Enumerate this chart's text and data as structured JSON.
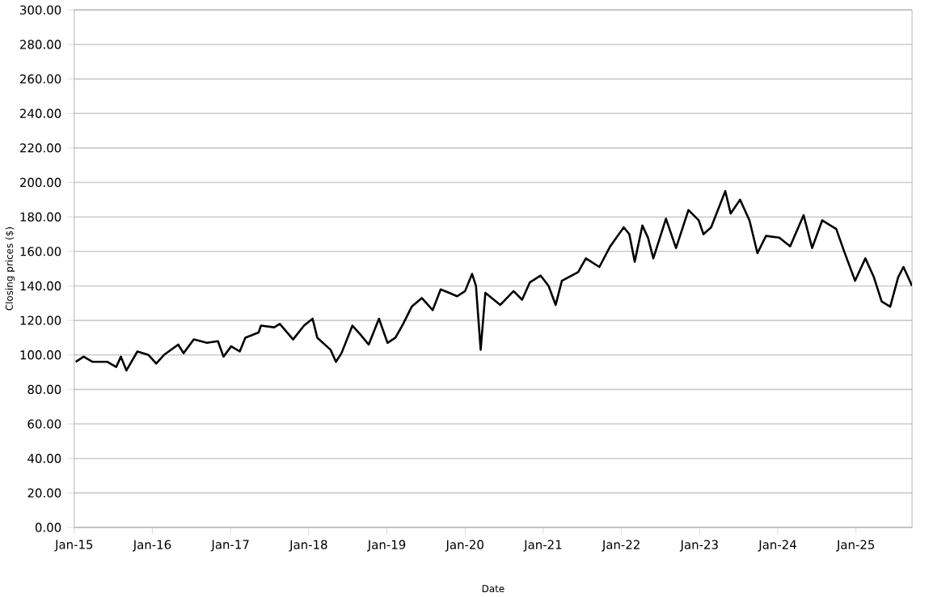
{
  "chart_data": {
    "type": "line",
    "xlabel": "Date",
    "ylabel": "Closing prices ($)",
    "grid": "y",
    "line_style": "solid",
    "marker": "none",
    "xlim": [
      "2015-01-01",
      "2025-09-20"
    ],
    "xticks": [
      {
        "value": "2015-01-01",
        "label": "Jan-15"
      },
      {
        "value": "2016-01-01",
        "label": "Jan-16"
      },
      {
        "value": "2017-01-01",
        "label": "Jan-17"
      },
      {
        "value": "2018-01-01",
        "label": "Jan-18"
      },
      {
        "value": "2019-01-01",
        "label": "Jan-19"
      },
      {
        "value": "2020-01-01",
        "label": "Jan-20"
      },
      {
        "value": "2021-01-01",
        "label": "Jan-21"
      },
      {
        "value": "2022-01-01",
        "label": "Jan-22"
      },
      {
        "value": "2023-01-01",
        "label": "Jan-23"
      },
      {
        "value": "2024-01-01",
        "label": "Jan-24"
      },
      {
        "value": "2025-01-01",
        "label": "Jan-25"
      }
    ],
    "ylim": [
      0,
      300
    ],
    "yticks": [
      {
        "value": 0,
        "label": "0.00"
      },
      {
        "value": 20,
        "label": "20.00"
      },
      {
        "value": 40,
        "label": "40.00"
      },
      {
        "value": 60,
        "label": "60.00"
      },
      {
        "value": 80,
        "label": "80.00"
      },
      {
        "value": 100,
        "label": "100.00"
      },
      {
        "value": 120,
        "label": "120.00"
      },
      {
        "value": 140,
        "label": "140.00"
      },
      {
        "value": 160,
        "label": "160.00"
      },
      {
        "value": 180,
        "label": "180.00"
      },
      {
        "value": 200,
        "label": "200.00"
      },
      {
        "value": 220,
        "label": "220.00"
      },
      {
        "value": 240,
        "label": "240.00"
      },
      {
        "value": 260,
        "label": "260.00"
      },
      {
        "value": 280,
        "label": "280.00"
      },
      {
        "value": 300,
        "label": "300.00"
      }
    ],
    "x": [
      "2015-01-08",
      "2015-02-14",
      "2015-03-28",
      "2015-06-05",
      "2015-07-16",
      "2015-08-07",
      "2015-09-02",
      "2015-10-23",
      "2015-12-14",
      "2016-01-19",
      "2016-02-24",
      "2016-05-01",
      "2016-05-26",
      "2016-07-13",
      "2016-09-13",
      "2016-11-03",
      "2016-11-29",
      "2017-01-04",
      "2017-02-13",
      "2017-03-11",
      "2017-05-12",
      "2017-05-23",
      "2017-07-24",
      "2017-08-19",
      "2017-10-20",
      "2017-12-10",
      "2018-01-19",
      "2018-02-10",
      "2018-04-13",
      "2018-05-08",
      "2018-06-03",
      "2018-07-24",
      "2018-08-29",
      "2018-10-08",
      "2018-11-25",
      "2019-01-04",
      "2019-02-10",
      "2019-03-18",
      "2019-04-27",
      "2019-06-13",
      "2019-08-03",
      "2019-09-09",
      "2019-10-19",
      "2019-11-25",
      "2020-01-01",
      "2020-02-03",
      "2020-02-21",
      "2020-03-14",
      "2020-04-05",
      "2020-06-14",
      "2020-08-15",
      "2020-09-24",
      "2020-10-30",
      "2020-12-20",
      "2021-01-26",
      "2021-02-28",
      "2021-03-29",
      "2021-06-13",
      "2021-07-19",
      "2021-09-20",
      "2021-11-10",
      "2022-01-12",
      "2022-02-07",
      "2022-03-04",
      "2022-04-09",
      "2022-05-05",
      "2022-05-30",
      "2022-07-28",
      "2022-09-13",
      "2022-11-10",
      "2022-12-28",
      "2023-01-19",
      "2023-02-24",
      "2023-05-01",
      "2023-05-26",
      "2023-07-09",
      "2023-08-22",
      "2023-09-28",
      "2023-11-07",
      "2024-01-08",
      "2024-02-28",
      "2024-05-01",
      "2024-06-10",
      "2024-07-27",
      "2024-10-01",
      "2024-11-07",
      "2024-12-28",
      "2025-02-14",
      "2025-03-26",
      "2025-05-01",
      "2025-06-10",
      "2025-07-17",
      "2025-08-11",
      "2025-09-20"
    ],
    "series": [
      {
        "color": "#000000",
        "values": [
          96,
          99,
          96,
          96,
          93,
          99,
          91,
          102,
          100,
          95,
          100,
          106,
          101,
          109,
          107,
          108,
          99,
          105,
          102,
          110,
          113,
          117,
          116,
          118,
          109,
          117,
          121,
          110,
          103,
          96,
          101,
          117,
          112,
          106,
          121,
          107,
          110,
          118,
          128,
          133,
          126,
          138,
          136,
          134,
          137,
          147,
          140,
          103,
          136,
          129,
          137,
          132,
          142,
          146,
          140,
          129,
          143,
          148,
          156,
          151,
          163,
          174,
          170,
          154,
          175,
          168,
          156,
          179,
          162,
          184,
          178,
          170,
          174,
          195,
          182,
          190,
          178,
          159,
          169,
          168,
          163,
          181,
          162,
          178,
          173,
          160,
          143,
          156,
          145,
          131,
          128,
          145,
          151,
          140
        ]
      }
    ]
  }
}
